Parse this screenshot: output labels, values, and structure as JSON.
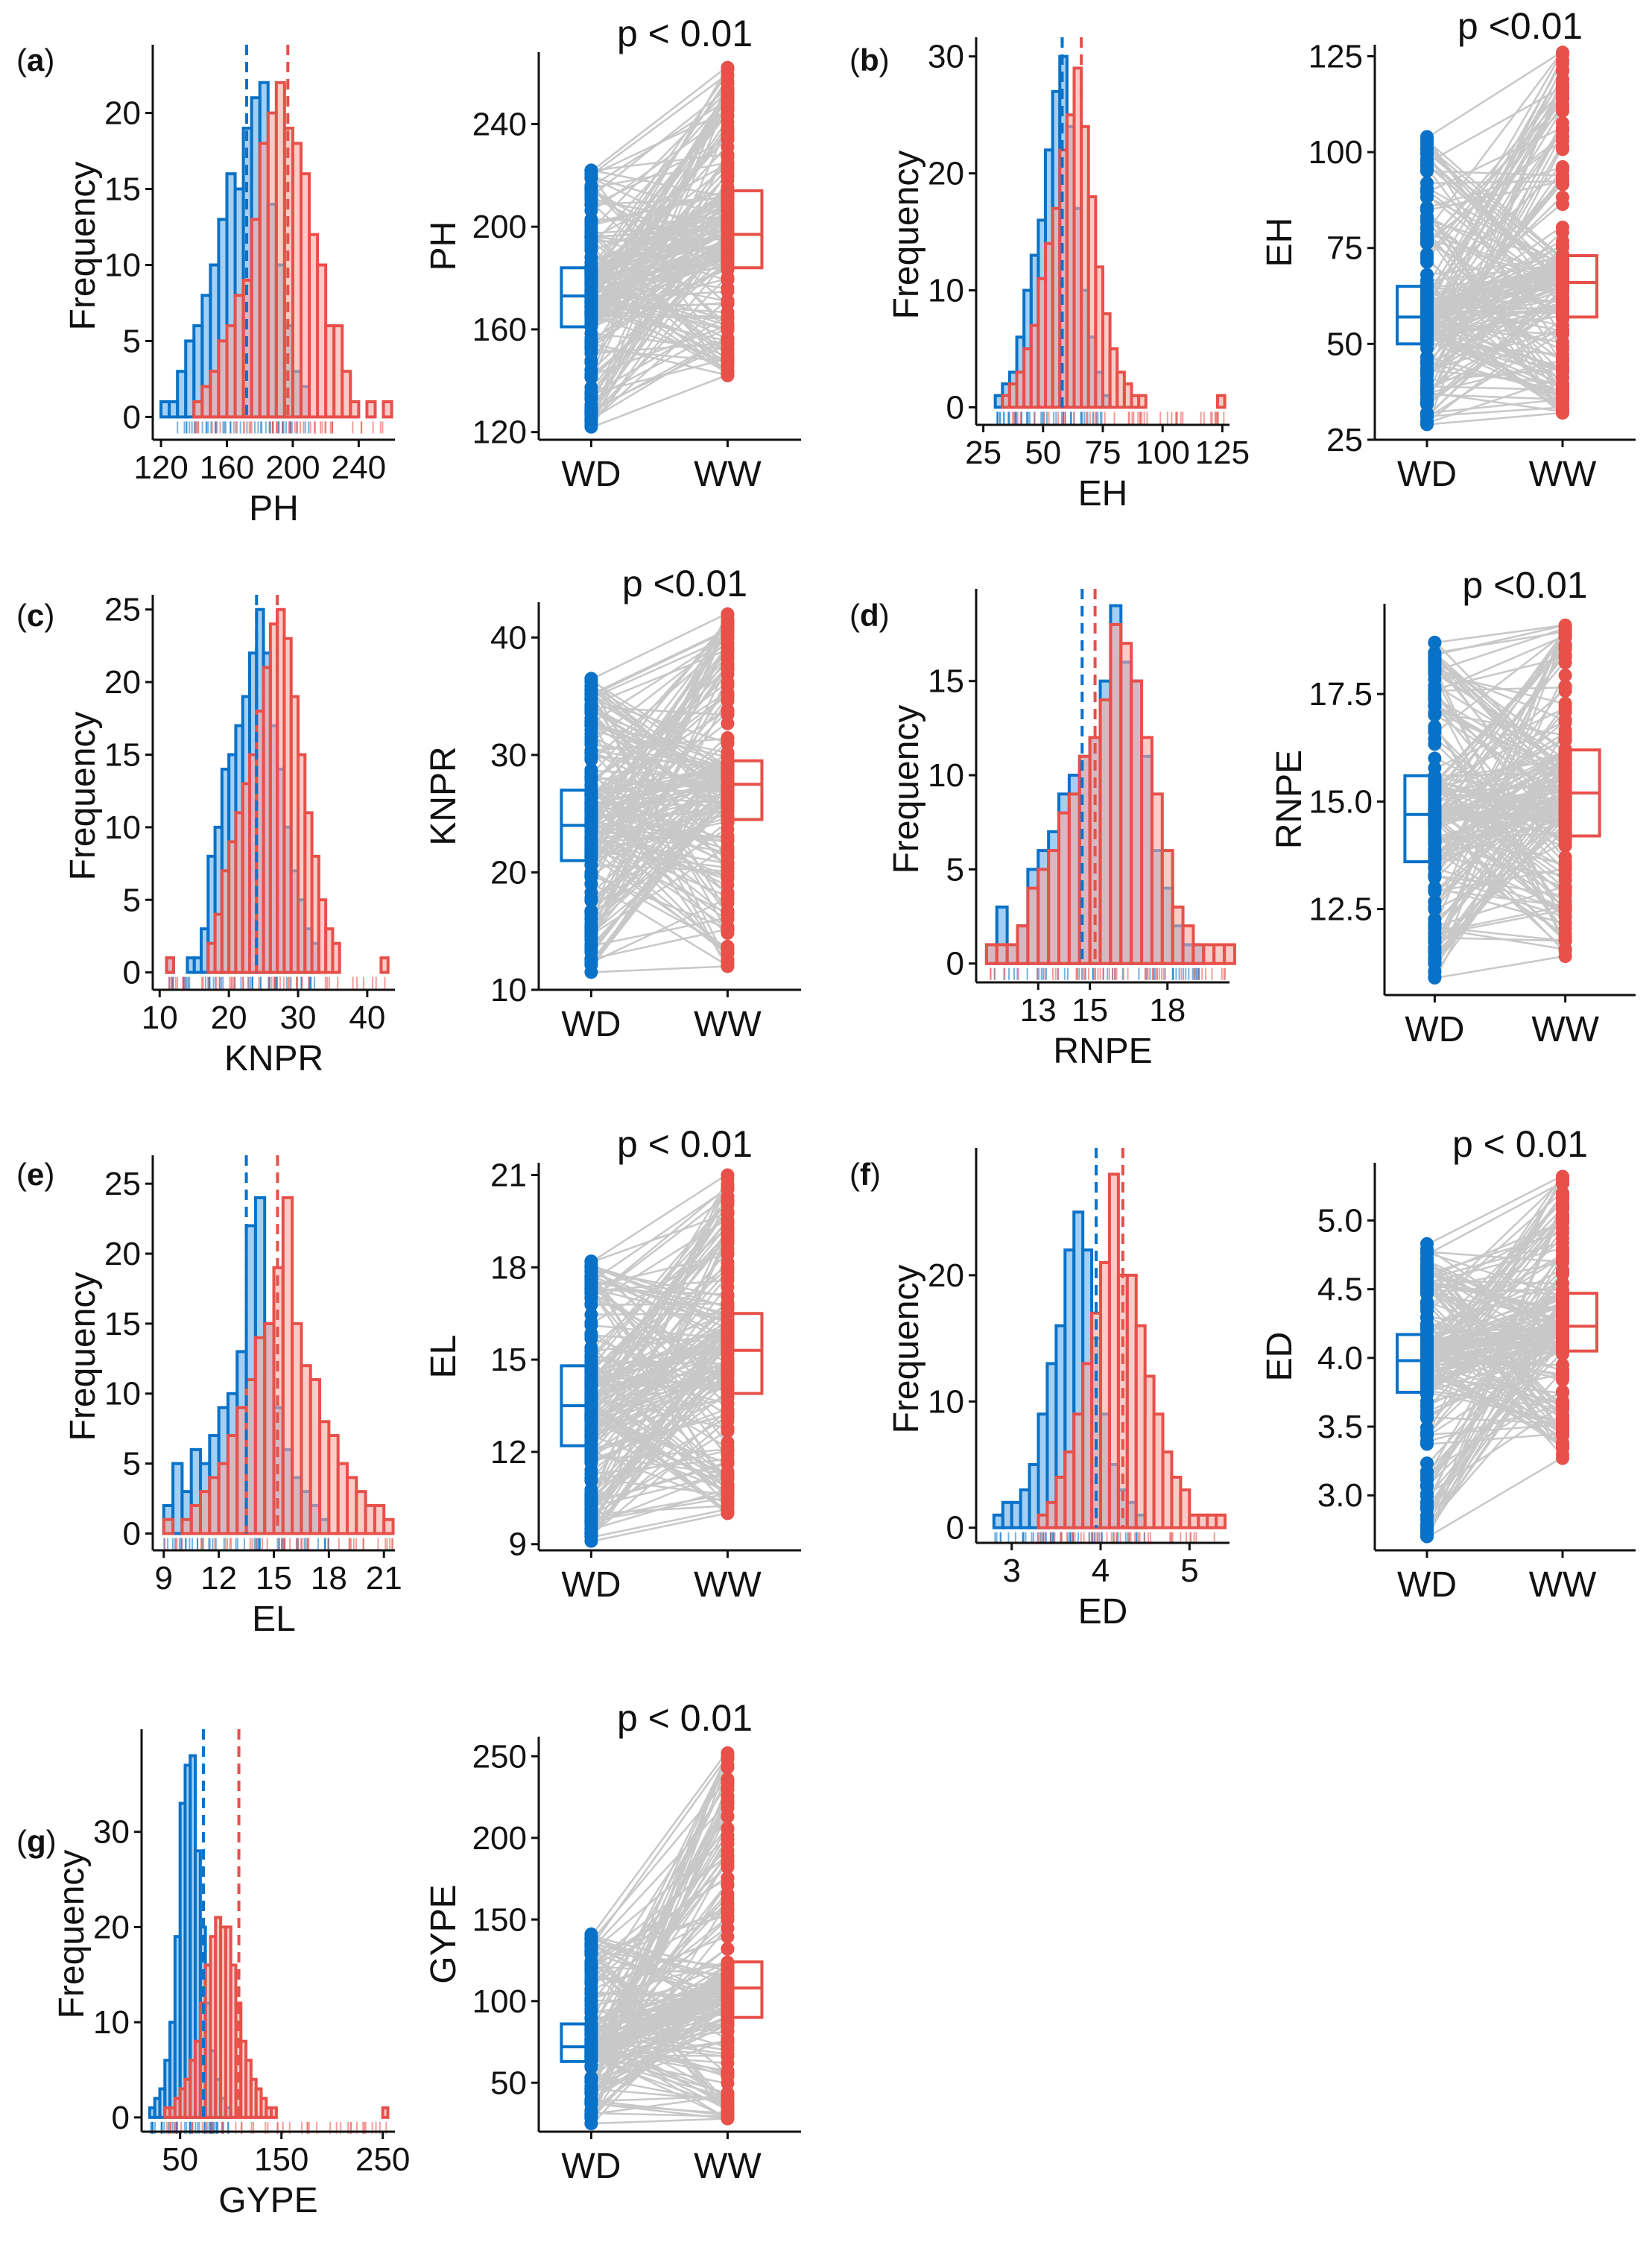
{
  "colors": {
    "WD": "#0872C8",
    "WW": "#E8504A",
    "WD_fill": "#5AA8E8",
    "WW_fill": "#F6A8A2",
    "pair_line": "#C8C8C8",
    "axis": "#111111"
  },
  "group_labels": [
    "WD",
    "WW"
  ],
  "chart_data": [
    {
      "panel": "a",
      "tag_open": "(",
      "tag_letter": "a",
      "tag_close": ")",
      "trait": "PH",
      "histogram": {
        "type": "histogram",
        "xlabel": "PH",
        "ylabel": "Frequency",
        "xlim": [
          115,
          262
        ],
        "ylim": [
          -1.5,
          24
        ],
        "xticks": [
          120,
          160,
          200,
          240
        ],
        "yticks": [
          0,
          5,
          10,
          15,
          20
        ],
        "mean_WD": 172,
        "mean_WW": 197,
        "series": [
          {
            "name": "WD",
            "bin_start": 120,
            "bin_width": 5,
            "counts": [
              1,
              1,
              3,
              5,
              6,
              8,
              10,
              13,
              16,
              15,
              19,
              21,
              22,
              14,
              10,
              6,
              3,
              2
            ]
          },
          {
            "name": "WW",
            "bin_start": 140,
            "bin_width": 5,
            "counts": [
              1,
              2,
              3,
              5,
              6,
              8,
              9,
              13,
              18,
              20,
              22,
              19,
              18,
              16,
              12,
              10,
              6,
              6,
              3,
              1,
              0,
              1,
              0,
              1
            ]
          }
        ]
      },
      "paired": {
        "type": "paired_boxplot",
        "ylabel": "PH",
        "p_label": "p < 0.01",
        "ylim": [
          117,
          268
        ],
        "yticks": [
          120,
          160,
          200,
          240
        ],
        "box_WD": {
          "min": 122,
          "q1": 161,
          "median": 173,
          "q3": 184,
          "max": 222
        },
        "box_WW": {
          "min": 142,
          "q1": 184,
          "median": 197,
          "q3": 214,
          "max": 262
        }
      }
    },
    {
      "panel": "b",
      "tag_open": "(",
      "tag_letter": "b",
      "tag_close": ")",
      "trait": "EH",
      "histogram": {
        "type": "histogram",
        "xlabel": "EH",
        "ylabel": "Frequency",
        "xlim": [
          22,
          128
        ],
        "ylim": [
          -1.5,
          31
        ],
        "xticks": [
          25,
          50,
          75,
          100,
          125
        ],
        "yticks": [
          0,
          10,
          20,
          30
        ],
        "mean_WD": 58,
        "mean_WW": 66,
        "series": [
          {
            "name": "WD",
            "bin_start": 30,
            "bin_width": 3,
            "counts": [
              1,
              2,
              3,
              6,
              10,
              13,
              16,
              22,
              27,
              30,
              24,
              17,
              10,
              6,
              3,
              1
            ]
          },
          {
            "name": "WW",
            "bin_start": 33,
            "bin_width": 3,
            "counts": [
              1,
              2,
              3,
              5,
              7,
              11,
              14,
              17,
              22,
              25,
              29,
              24,
              18,
              12,
              8,
              5,
              3,
              2,
              1,
              1,
              0,
              0,
              0,
              0,
              0,
              0,
              0,
              0,
              0,
              0,
              1
            ]
          }
        ]
      },
      "paired": {
        "type": "paired_boxplot",
        "ylabel": "EH",
        "p_label": "p <0.01",
        "ylim": [
          25,
          128
        ],
        "yticks": [
          25,
          50,
          75,
          100,
          125
        ],
        "box_WD": {
          "min": 29,
          "q1": 50,
          "median": 57,
          "q3": 65,
          "max": 104
        },
        "box_WW": {
          "min": 32,
          "q1": 57,
          "median": 66,
          "q3": 73,
          "max": 126
        }
      }
    },
    {
      "panel": "c",
      "tag_open": "(",
      "tag_letter": "c",
      "tag_close": ")",
      "trait": "KNPR",
      "histogram": {
        "type": "histogram",
        "xlabel": "KNPR",
        "ylabel": "Frequency",
        "xlim": [
          9,
          44
        ],
        "ylim": [
          -1.2,
          25.5
        ],
        "xticks": [
          10,
          20,
          30,
          40
        ],
        "yticks": [
          0,
          5,
          10,
          15,
          20,
          25
        ],
        "mean_WD": 24,
        "mean_WW": 27,
        "series": [
          {
            "name": "WD",
            "bin_start": 11,
            "bin_width": 1,
            "counts": [
              1,
              0,
              0,
              1,
              1,
              3,
              8,
              10,
              14,
              15,
              17,
              19,
              22,
              25,
              22,
              17,
              14,
              10,
              7,
              5,
              3,
              2
            ]
          },
          {
            "name": "WW",
            "bin_start": 11,
            "bin_width": 1,
            "counts": [
              1,
              0,
              0,
              0,
              0,
              0,
              2,
              4,
              7,
              9,
              11,
              13,
              15,
              18,
              21,
              24,
              25,
              23,
              19,
              15,
              11,
              8,
              5,
              3,
              2,
              0,
              0,
              0,
              0,
              0,
              0,
              1
            ]
          }
        ]
      },
      "paired": {
        "type": "paired_boxplot",
        "ylabel": "KNPR",
        "p_label": "p <0.01",
        "ylim": [
          10,
          43
        ],
        "yticks": [
          10,
          20,
          30,
          40
        ],
        "box_WD": {
          "min": 11.5,
          "q1": 21,
          "median": 24,
          "q3": 27,
          "max": 36.5
        },
        "box_WW": {
          "min": 12,
          "q1": 24.5,
          "median": 27.5,
          "q3": 29.5,
          "max": 42
        }
      }
    },
    {
      "panel": "d",
      "tag_open": "(",
      "tag_letter": "d",
      "tag_close": ")",
      "trait": "RNPE",
      "histogram": {
        "type": "histogram",
        "xlabel": "RNPE",
        "ylabel": "Frequency",
        "xlim": [
          10.6,
          20.4
        ],
        "ylim": [
          -1,
          19.5
        ],
        "xticks": [
          13,
          15,
          18
        ],
        "yticks": [
          0,
          5,
          10,
          15
        ],
        "mean_WD": 14.7,
        "mean_WW": 15.2,
        "series": [
          {
            "name": "WD",
            "bin_start": 11,
            "bin_width": 0.4,
            "counts": [
              1,
              3,
              1,
              2,
              5,
              6,
              7,
              9,
              10,
              11,
              12,
              15,
              19,
              16,
              15,
              11,
              6,
              4,
              2,
              1,
              1
            ]
          },
          {
            "name": "WW",
            "bin_start": 11,
            "bin_width": 0.4,
            "counts": [
              1,
              1,
              1,
              2,
              4,
              5,
              6,
              8,
              9,
              11,
              12,
              14,
              18,
              17,
              15,
              12,
              9,
              6,
              3,
              2,
              1,
              1,
              1,
              1
            ]
          }
        ]
      },
      "paired": {
        "type": "paired_boxplot",
        "ylabel": "RNPE",
        "p_label": "p <0.01",
        "ylim": [
          10.5,
          19.6
        ],
        "yticks": [
          12.5,
          15.0,
          17.5
        ],
        "ytick_labels": [
          "12.5",
          "15.0",
          "17.5"
        ],
        "box_WD": {
          "min": 10.9,
          "q1": 13.6,
          "median": 14.7,
          "q3": 15.6,
          "max": 18.7
        },
        "box_WW": {
          "min": 11.4,
          "q1": 14.2,
          "median": 15.2,
          "q3": 16.2,
          "max": 19.1
        }
      }
    },
    {
      "panel": "e",
      "tag_open": "(",
      "tag_letter": "e",
      "tag_close": ")",
      "trait": "EL",
      "histogram": {
        "type": "histogram",
        "xlabel": "EL",
        "ylabel": "Frequency",
        "xlim": [
          8.4,
          21.6
        ],
        "ylim": [
          -1.2,
          26.5
        ],
        "xticks": [
          9,
          12,
          15,
          18,
          21
        ],
        "yticks": [
          0,
          5,
          10,
          15,
          20,
          25
        ],
        "mean_WD": 13.5,
        "mean_WW": 15.2,
        "series": [
          {
            "name": "WD",
            "bin_start": 9,
            "bin_width": 0.5,
            "counts": [
              2,
              5,
              3,
              6,
              5,
              7,
              9,
              10,
              13,
              22,
              24,
              15,
              9,
              6,
              4,
              3,
              2,
              1
            ]
          },
          {
            "name": "WW",
            "bin_start": 9,
            "bin_width": 0.5,
            "counts": [
              1,
              0,
              1,
              2,
              3,
              4,
              5,
              7,
              9,
              11,
              14,
              15,
              19,
              24,
              15,
              12,
              11,
              8,
              7,
              5,
              4,
              3,
              2,
              2,
              1
            ]
          }
        ]
      },
      "paired": {
        "type": "paired_boxplot",
        "ylabel": "EL",
        "p_label": "p < 0.01",
        "ylim": [
          8.8,
          21.4
        ],
        "yticks": [
          9,
          12,
          15,
          18,
          21
        ],
        "box_WD": {
          "min": 9.1,
          "q1": 12.2,
          "median": 13.5,
          "q3": 14.8,
          "max": 18.2
        },
        "box_WW": {
          "min": 10,
          "q1": 13.9,
          "median": 15.3,
          "q3": 16.5,
          "max": 21
        }
      }
    },
    {
      "panel": "f",
      "tag_open": "(",
      "tag_letter": "f",
      "tag_close": ")",
      "trait": "ED",
      "histogram": {
        "type": "histogram",
        "xlabel": "ED",
        "ylabel": "Frequency",
        "xlim": [
          2.6,
          5.45
        ],
        "ylim": [
          -1.2,
          29.5
        ],
        "xticks": [
          3,
          4,
          5
        ],
        "yticks": [
          0,
          10,
          20
        ],
        "mean_WD": 3.95,
        "mean_WW": 4.25,
        "series": [
          {
            "name": "WD",
            "bin_start": 2.8,
            "bin_width": 0.1,
            "counts": [
              1,
              2,
              2,
              3,
              5,
              9,
              13,
              16,
              22,
              25,
              22,
              15,
              9,
              5,
              3,
              2,
              1
            ]
          },
          {
            "name": "WW",
            "bin_start": 3.3,
            "bin_width": 0.1,
            "counts": [
              1,
              2,
              4,
              6,
              9,
              13,
              17,
              21,
              28,
              20,
              20,
              16,
              12,
              9,
              6,
              4,
              3,
              1,
              1,
              1,
              1
            ]
          }
        ]
      },
      "paired": {
        "type": "paired_boxplot",
        "ylabel": "ED",
        "p_label": "p < 0.01",
        "ylim": [
          2.6,
          5.42
        ],
        "yticks": [
          3.0,
          3.5,
          4.0,
          4.5,
          5.0
        ],
        "ytick_labels": [
          "3.0",
          "3.5",
          "4.0",
          "4.5",
          "5.0"
        ],
        "box_WD": {
          "min": 2.7,
          "q1": 3.75,
          "median": 3.98,
          "q3": 4.17,
          "max": 4.83
        },
        "box_WW": {
          "min": 3.27,
          "q1": 4.05,
          "median": 4.23,
          "q3": 4.47,
          "max": 5.32
        }
      }
    },
    {
      "panel": "g",
      "tag_open": "(",
      "tag_letter": "g",
      "tag_close": ")",
      "trait": "GYPE",
      "histogram": {
        "type": "histogram",
        "xlabel": "GYPE",
        "ylabel": "Frequency",
        "xlim": [
          12,
          262
        ],
        "ylim": [
          -1.5,
          40
        ],
        "xticks": [
          50,
          150,
          250
        ],
        "yticks": [
          0,
          10,
          20,
          30
        ],
        "mean_WD": 73,
        "mean_WW": 108,
        "series": [
          {
            "name": "WD",
            "bin_start": 20,
            "bin_width": 5,
            "counts": [
              1,
              2,
              3,
              6,
              10,
              19,
              33,
              37,
              38,
              28,
              20,
              12,
              7,
              4,
              2,
              1
            ]
          },
          {
            "name": "WW",
            "bin_start": 35,
            "bin_width": 5,
            "counts": [
              1,
              1,
              2,
              3,
              4,
              6,
              8,
              12,
              16,
              19,
              21,
              20,
              20,
              16,
              12,
              8,
              6,
              4,
              3,
              2,
              1,
              1,
              0,
              0,
              0,
              0,
              0,
              0,
              0,
              0,
              0,
              0,
              0,
              0,
              0,
              0,
              0,
              0,
              0,
              0,
              0,
              0,
              0,
              1
            ]
          }
        ]
      },
      "paired": {
        "type": "paired_boxplot",
        "ylabel": "GYPE",
        "p_label": "p < 0.01",
        "ylim": [
          20,
          262
        ],
        "yticks": [
          50,
          100,
          150,
          200,
          250
        ],
        "box_WD": {
          "min": 25,
          "q1": 63,
          "median": 72,
          "q3": 86,
          "max": 141
        },
        "box_WW": {
          "min": 28,
          "q1": 90,
          "median": 108,
          "q3": 124,
          "max": 252
        }
      }
    }
  ]
}
